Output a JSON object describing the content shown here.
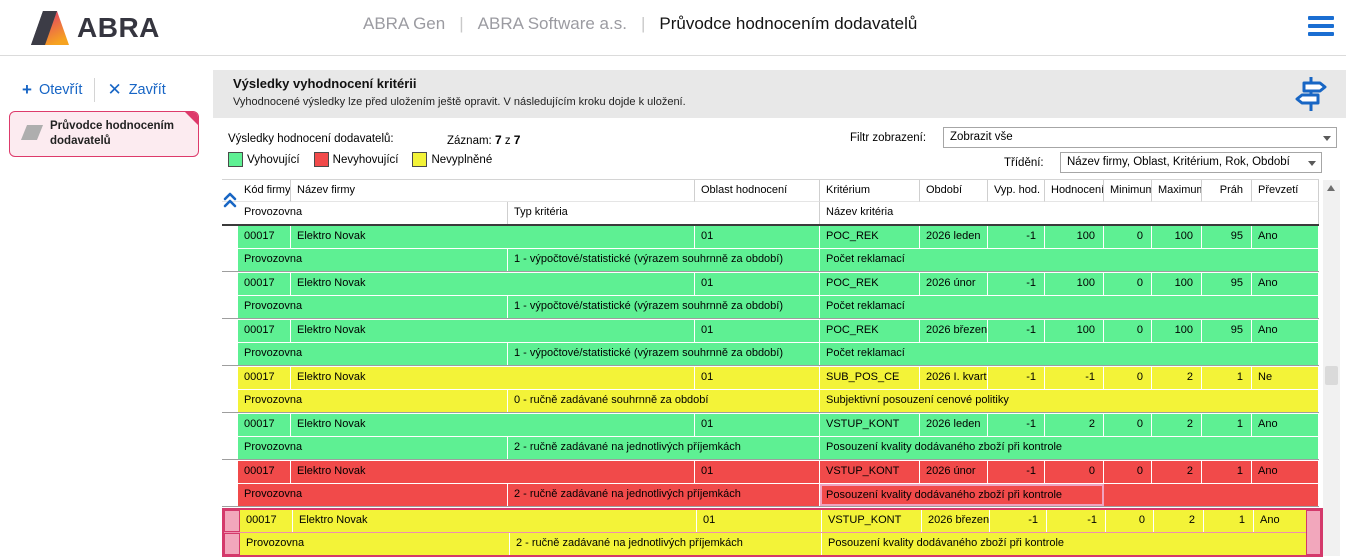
{
  "app": {
    "brand": "ABRA",
    "product": "ABRA Gen",
    "company": "ABRA Software a.s.",
    "page_title": "Průvodce hodnocením dodavatelů",
    "accent_blue": "#1a6ed2",
    "accent_pink": "#dd3a6b"
  },
  "sidebar": {
    "open_label": "Otevřít",
    "close_label": "Zavřít",
    "tab_title": "Průvodce hodnocením dodavatelů"
  },
  "panel": {
    "title": "Výsledky vyhodnocení kritérii",
    "subtitle": "Vyhodnocené výsledky lze před uložením ještě opravit. V následujícím kroku dojde k uložení.",
    "results_label": "Výsledky hodnocení dodavatelů:",
    "record_label": "Záznam:",
    "record_current": "7",
    "record_of": "z",
    "record_total": "7",
    "filter_label": "Filtr zobrazení:",
    "filter_value": "Zobrazit vše",
    "sort_label": "Třídění:",
    "sort_value": "Název firmy, Oblast, Kritérium, Rok, Období"
  },
  "legend": {
    "ok": {
      "label": "Vyhovující",
      "color": "#5ef093"
    },
    "fail": {
      "label": "Nevyhovující",
      "color": "#f14a4a"
    },
    "empty": {
      "label": "Nevyplněné",
      "color": "#f3f338"
    }
  },
  "icons": {
    "menu": "hamburger-icon",
    "open": "plus-icon",
    "close": "x-icon",
    "wizard_step": "signpost-icon",
    "collapse": "double-chevron-up-icon",
    "dropdown": "triangle-down-icon"
  },
  "table": {
    "header_row1": {
      "kod": "Kód firmy",
      "nazev": "Název firmy",
      "oblast": "Oblast hodnocení",
      "kriterium": "Kritérium",
      "obdobi": "Období",
      "vyp": "Vyp. hod.",
      "hodnoceni": "Hodnocení",
      "minimum": "Minimum",
      "maximum": "Maximum",
      "prah": "Práh",
      "prevzeti": "Převzetí"
    },
    "header_row2": {
      "provozovna": "Provozovna",
      "typ": "Typ kritéria",
      "nazev_kriteria": "Název kritéria"
    },
    "records": [
      {
        "status": "ok",
        "code": "00017",
        "firm": "Elektro Novak",
        "area": "01",
        "criterion": "POC_REK",
        "period": "2026 leden",
        "vyp": "-1",
        "hodnoceni": "100",
        "min": "0",
        "max": "100",
        "prah": "95",
        "prevzeti": "Ano",
        "branch": "Provozovna",
        "type": "1 - výpočtové/statistické (výrazem souhrnně za období)",
        "crit_name": "Počet reklamací"
      },
      {
        "status": "ok",
        "code": "00017",
        "firm": "Elektro Novak",
        "area": "01",
        "criterion": "POC_REK",
        "period": "2026 únor",
        "vyp": "-1",
        "hodnoceni": "100",
        "min": "0",
        "max": "100",
        "prah": "95",
        "prevzeti": "Ano",
        "branch": "Provozovna",
        "type": "1 - výpočtové/statistické (výrazem souhrnně za období)",
        "crit_name": "Počet reklamací"
      },
      {
        "status": "ok",
        "code": "00017",
        "firm": "Elektro Novak",
        "area": "01",
        "criterion": "POC_REK",
        "period": "2026 březen",
        "vyp": "-1",
        "hodnoceni": "100",
        "min": "0",
        "max": "100",
        "prah": "95",
        "prevzeti": "Ano",
        "branch": "Provozovna",
        "type": "1 - výpočtové/statistické (výrazem souhrnně za období)",
        "crit_name": "Počet reklamací"
      },
      {
        "status": "empty",
        "code": "00017",
        "firm": "Elektro Novak",
        "area": "01",
        "criterion": "SUB_POS_CE",
        "period": "2026 I. kvart",
        "vyp": "-1",
        "hodnoceni": "-1",
        "min": "0",
        "max": "2",
        "prah": "1",
        "prevzeti": "Ne",
        "branch": "Provozovna",
        "type": "0 - ručně zadávané souhrnně za období",
        "crit_name": "Subjektivní posouzení cenové politiky"
      },
      {
        "status": "ok",
        "code": "00017",
        "firm": "Elektro Novak",
        "area": "01",
        "criterion": "VSTUP_KONT",
        "period": "2026 leden",
        "vyp": "-1",
        "hodnoceni": "2",
        "min": "0",
        "max": "2",
        "prah": "1",
        "prevzeti": "Ano",
        "branch": "Provozovna",
        "type": "2 - ručně zadávané na jednotlivých příjemkách",
        "crit_name": "Posouzení kvality dodávaného zboží při kontrole"
      },
      {
        "status": "fail",
        "focused_cell": true,
        "code": "00017",
        "firm": "Elektro Novak",
        "area": "01",
        "criterion": "VSTUP_KONT",
        "period": "2026 únor",
        "vyp": "-1",
        "hodnoceni": "0",
        "min": "0",
        "max": "2",
        "prah": "1",
        "prevzeti": "Ano",
        "branch": "Provozovna",
        "type": "2 - ručně zadávané na jednotlivých příjemkách",
        "crit_name": "Posouzení kvality dodávaného zboží při kontrole"
      },
      {
        "status": "empty",
        "selected": true,
        "code": "00017",
        "firm": "Elektro Novak",
        "area": "01",
        "criterion": "VSTUP_KONT",
        "period": "2026 březen",
        "vyp": "-1",
        "hodnoceni": "-1",
        "min": "0",
        "max": "2",
        "prah": "1",
        "prevzeti": "Ano",
        "branch": "Provozovna",
        "type": "2 - ručně zadávané na jednotlivých příjemkách",
        "crit_name": "Posouzení kvality dodávaného zboží při kontrole"
      }
    ]
  }
}
